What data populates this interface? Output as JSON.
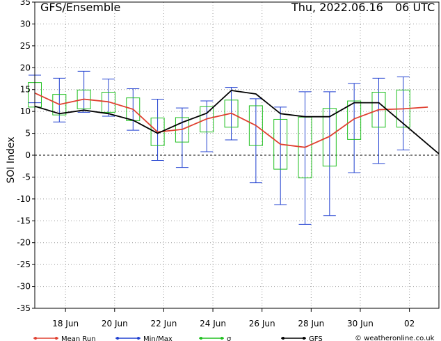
{
  "chart_data": {
    "type": "line",
    "title": "GFS/Ensemble",
    "date_text": "Thu, 2022.06.16",
    "run_text": "06 UTC",
    "ylabel": "SOI Index",
    "ylim": [
      -35,
      35
    ],
    "yticks": [
      -35,
      -30,
      -25,
      -20,
      -15,
      -10,
      -5,
      0,
      5,
      10,
      15,
      20,
      25,
      30,
      35
    ],
    "grid": true,
    "x_range_days": [
      16.75,
      33.2
    ],
    "xticks": [
      {
        "x": 18,
        "label": "18 Jun"
      },
      {
        "x": 20,
        "label": "20 Jun"
      },
      {
        "x": 22,
        "label": "22 Jun"
      },
      {
        "x": 24,
        "label": "24 Jun"
      },
      {
        "x": 26,
        "label": "26 Jun"
      },
      {
        "x": 28,
        "label": "28 Jun"
      },
      {
        "x": 30,
        "label": "30 Jun"
      },
      {
        "x": 32,
        "label": "02"
      }
    ],
    "colors": {
      "mean": "#e04030",
      "minmax": "#2040d0",
      "sigma": "#20c020",
      "gfs": "#000000",
      "grid": "#9a9a9a"
    },
    "series": [
      {
        "name": "Mean Run",
        "key": "mean",
        "x": [
          16.75,
          17.75,
          18.75,
          19.75,
          20.75,
          21.75,
          22.75,
          23.75,
          24.75,
          25.75,
          26.75,
          27.75,
          28.75,
          29.75,
          30.75,
          31.75,
          32.75
        ],
        "values": [
          14.2,
          11.6,
          12.8,
          12.2,
          10.5,
          5.3,
          5.9,
          8.3,
          9.6,
          6.8,
          2.5,
          1.8,
          4.3,
          8.3,
          10.4,
          10.6,
          11.0
        ]
      },
      {
        "name": "GFS",
        "key": "gfs",
        "x": [
          16.75,
          17.75,
          18.75,
          19.75,
          20.75,
          21.75,
          22.75,
          23.75,
          24.75,
          25.75,
          26.75,
          27.75,
          28.75,
          29.75,
          30.75,
          33.2
        ],
        "values": [
          11.2,
          9.5,
          10.3,
          9.5,
          8.0,
          5.0,
          7.5,
          9.6,
          14.8,
          14.0,
          9.5,
          8.8,
          8.8,
          12.0,
          12.0,
          0.3
        ]
      }
    ],
    "minmax": [
      {
        "x": 16.75,
        "min": 12.0,
        "max": 18.3
      },
      {
        "x": 17.75,
        "min": 7.6,
        "max": 17.6
      },
      {
        "x": 18.75,
        "min": 9.8,
        "max": 19.2
      },
      {
        "x": 19.75,
        "min": 8.9,
        "max": 17.4
      },
      {
        "x": 20.75,
        "min": 5.7,
        "max": 15.2
      },
      {
        "x": 21.75,
        "min": -1.2,
        "max": 12.8
      },
      {
        "x": 22.75,
        "min": -2.8,
        "max": 10.8
      },
      {
        "x": 23.75,
        "min": 0.8,
        "max": 12.4
      },
      {
        "x": 24.75,
        "min": 3.5,
        "max": 15.5
      },
      {
        "x": 25.75,
        "min": -6.3,
        "max": 12.9
      },
      {
        "x": 26.75,
        "min": -11.3,
        "max": 11.0
      },
      {
        "x": 27.75,
        "min": -15.8,
        "max": 14.5
      },
      {
        "x": 28.75,
        "min": -13.8,
        "max": 14.5
      },
      {
        "x": 29.75,
        "min": -4.0,
        "max": 16.4
      },
      {
        "x": 30.75,
        "min": -1.9,
        "max": 17.6
      },
      {
        "x": 31.75,
        "min": 1.2,
        "max": 17.9
      }
    ],
    "sigma": [
      {
        "x": 16.75,
        "low": 11.0,
        "high": 16.6
      },
      {
        "x": 17.75,
        "low": 9.2,
        "high": 13.9
      },
      {
        "x": 18.75,
        "low": 10.6,
        "high": 14.9
      },
      {
        "x": 19.75,
        "low": 9.8,
        "high": 14.4
      },
      {
        "x": 20.75,
        "low": 7.9,
        "high": 13.1
      },
      {
        "x": 21.75,
        "low": 2.2,
        "high": 8.5
      },
      {
        "x": 22.75,
        "low": 3.0,
        "high": 8.6
      },
      {
        "x": 23.75,
        "low": 5.3,
        "high": 11.1
      },
      {
        "x": 24.75,
        "low": 6.4,
        "high": 12.6
      },
      {
        "x": 25.75,
        "low": 2.2,
        "high": 11.3
      },
      {
        "x": 26.75,
        "low": -3.2,
        "high": 8.2
      },
      {
        "x": 27.75,
        "low": -5.2,
        "high": 8.7
      },
      {
        "x": 28.75,
        "low": -2.5,
        "high": 10.7
      },
      {
        "x": 29.75,
        "low": 3.6,
        "high": 12.4
      },
      {
        "x": 30.75,
        "low": 6.4,
        "high": 14.4
      },
      {
        "x": 31.75,
        "low": 6.4,
        "high": 14.9
      }
    ],
    "legend": [
      {
        "key": "mean",
        "label": "Mean Run"
      },
      {
        "key": "minmax",
        "label": "Min/Max"
      },
      {
        "key": "sigma",
        "label": "σ"
      },
      {
        "key": "gfs",
        "label": "GFS"
      }
    ],
    "legend_placement": "bottom",
    "credit": "© weatheronline.co.uk"
  }
}
